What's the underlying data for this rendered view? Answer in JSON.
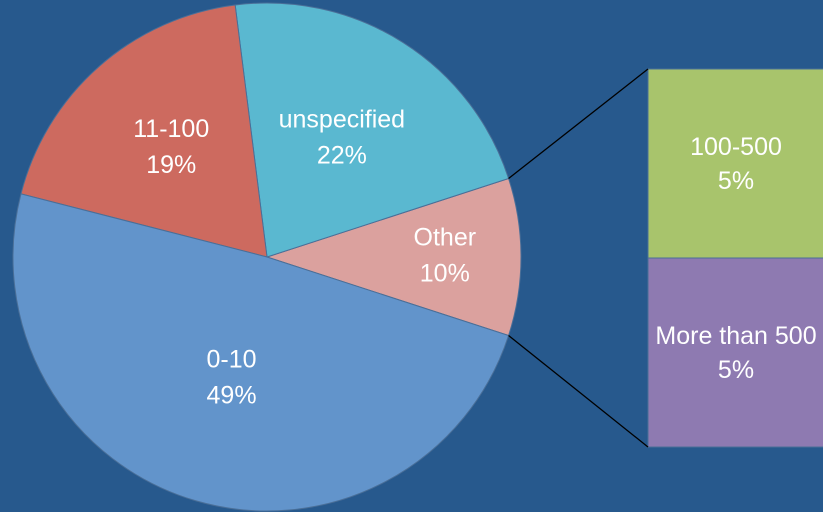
{
  "chart_data": {
    "type": "pie",
    "categories": [
      "Other",
      "unspecified",
      "11-100",
      "0-10"
    ],
    "values": [
      10,
      22,
      19,
      49
    ],
    "value_labels": [
      "10%",
      "22%",
      "19%",
      "49%"
    ],
    "colors": [
      "#dba19e",
      "#5ab8d0",
      "#cd6a5f",
      "#6294cb"
    ],
    "breakdown": {
      "type": "bar",
      "categories": [
        "100-500",
        "More than 500"
      ],
      "values": [
        5,
        5
      ],
      "value_labels": [
        "5%",
        "5%"
      ],
      "colors": [
        "#a8c46c",
        "#8e7ab1"
      ]
    }
  }
}
